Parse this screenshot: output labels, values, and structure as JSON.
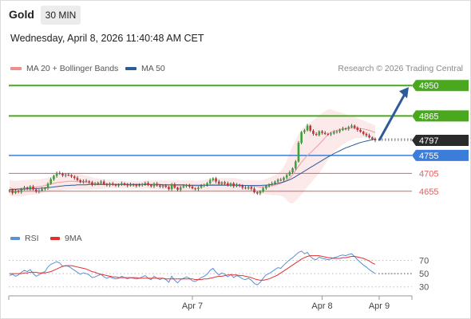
{
  "header": {
    "asset": "Gold",
    "timeframe": "30 MIN",
    "datetime": "Wednesday, April 8, 2026 11:40:48 AM CET"
  },
  "legend": {
    "bb_label": "MA 20 + Bollinger Bands",
    "ma50_label": "MA 50",
    "research": "Research © 2026 Trading Central"
  },
  "colors": {
    "resistance": "#4aa81f",
    "current": "#2b2b2b",
    "pivot": "#3b7dd8",
    "support": "#e06060",
    "bollinger": "#f4a0a0",
    "ma50": "#2d5b9a",
    "rsi": "#5b8fd6",
    "rsi_ma": "#e03030",
    "arrow": "#2d5b9a"
  },
  "chart_data": [
    {
      "type": "line",
      "title": "",
      "levels": [
        {
          "label": "4950",
          "value": 4950,
          "kind": "resistance"
        },
        {
          "label": "4865",
          "value": 4865,
          "kind": "resistance"
        },
        {
          "label": "4797",
          "value": 4797,
          "kind": "current"
        },
        {
          "label": "4755",
          "value": 4755,
          "kind": "pivot"
        },
        {
          "label": "4705",
          "value": 4705,
          "kind": "support"
        },
        {
          "label": "4655",
          "value": 4655,
          "kind": "support"
        }
      ],
      "ylim": [
        4570,
        4975
      ],
      "x_ticks": [
        "Apr 7",
        "Apr 8",
        "Apr 9"
      ],
      "close_series": [
        4658,
        4650,
        4656,
        4653,
        4660,
        4665,
        4662,
        4668,
        4660,
        4654,
        4657,
        4661,
        4664,
        4676,
        4688,
        4698,
        4706,
        4704,
        4699,
        4701,
        4700,
        4696,
        4692,
        4686,
        4681,
        4684,
        4683,
        4680,
        4674,
        4676,
        4679,
        4682,
        4675,
        4672,
        4676,
        4673,
        4671,
        4673,
        4677,
        4674,
        4671,
        4674,
        4672,
        4670,
        4672,
        4675,
        4678,
        4672,
        4669,
        4676,
        4671,
        4668,
        4670,
        4667,
        4661,
        4674,
        4665,
        4659,
        4666,
        4669,
        4672,
        4668,
        4663,
        4661,
        4665,
        4670,
        4673,
        4677,
        4686,
        4691,
        4682,
        4676,
        4680,
        4677,
        4671,
        4677,
        4669,
        4673,
        4670,
        4665,
        4663,
        4667,
        4662,
        4652,
        4649,
        4654,
        4663,
        4670,
        4673,
        4677,
        4682,
        4687,
        4686,
        4693,
        4700,
        4708,
        4719,
        4738,
        4790,
        4820,
        4825,
        4838,
        4824,
        4815,
        4812,
        4822,
        4818,
        4815,
        4814,
        4816,
        4820,
        4822,
        4826,
        4830,
        4829,
        4834,
        4838,
        4832,
        4826,
        4821,
        4815,
        4811,
        4805,
        4801,
        4797
      ],
      "ma20_series": [
        4665,
        4662,
        4662,
        4662,
        4663,
        4664,
        4665,
        4666,
        4667,
        4667,
        4668,
        4669,
        4671,
        4673,
        4675,
        4677,
        4679,
        4680,
        4681,
        4682,
        4683,
        4683,
        4683,
        4682,
        4681,
        4680,
        4679,
        4678,
        4677,
        4676,
        4676,
        4676,
        4675,
        4675,
        4675,
        4675,
        4674,
        4674,
        4674,
        4674,
        4673,
        4673,
        4673,
        4673,
        4673,
        4673,
        4674,
        4674,
        4673,
        4673,
        4673,
        4673,
        4672,
        4672,
        4672,
        4672,
        4671,
        4671,
        4671,
        4671,
        4671,
        4671,
        4671,
        4670,
        4670,
        4671,
        4671,
        4672,
        4673,
        4674,
        4674,
        4674,
        4674,
        4674,
        4674,
        4674,
        4674,
        4674,
        4673,
        4672,
        4671,
        4671,
        4670,
        4669,
        4668,
        4667,
        4667,
        4668,
        4669,
        4670,
        4672,
        4674,
        4677,
        4681,
        4686,
        4692,
        4701,
        4713,
        4725,
        4736,
        4746,
        4755,
        4762,
        4770,
        4778,
        4786,
        4795,
        4804,
        4813,
        4820,
        4822,
        4825,
        4827,
        4829,
        4830,
        4831,
        4832,
        4832,
        4831,
        4830,
        4829,
        4827,
        4825,
        4822,
        4819
      ],
      "ma50_series": [
        4660,
        4660,
        4660,
        4661,
        4661,
        4661,
        4662,
        4662,
        4662,
        4663,
        4663,
        4664,
        4664,
        4665,
        4666,
        4667,
        4668,
        4669,
        4670,
        4671,
        4671,
        4672,
        4672,
        4673,
        4673,
        4673,
        4673,
        4674,
        4674,
        4674,
        4674,
        4674,
        4674,
        4674,
        4674,
        4674,
        4674,
        4674,
        4674,
        4674,
        4674,
        4674,
        4674,
        4674,
        4674,
        4674,
        4674,
        4674,
        4674,
        4674,
        4674,
        4674,
        4673,
        4673,
        4673,
        4673,
        4673,
        4673,
        4673,
        4673,
        4672,
        4672,
        4672,
        4672,
        4672,
        4672,
        4672,
        4672,
        4672,
        4672,
        4672,
        4672,
        4672,
        4672,
        4672,
        4672,
        4672,
        4672,
        4671,
        4671,
        4671,
        4671,
        4671,
        4671,
        4671,
        4671,
        4672,
        4672,
        4673,
        4674,
        4675,
        4677,
        4679,
        4681,
        4684,
        4687,
        4691,
        4696,
        4701,
        4706,
        4711,
        4716,
        4721,
        4726,
        4731,
        4736,
        4741,
        4746,
        4751,
        4755,
        4760,
        4764,
        4768,
        4772,
        4776,
        4779,
        4782,
        4785,
        4788,
        4791,
        4793,
        4795,
        4797,
        4799,
        4801
      ],
      "band_width_series": [
        22,
        22,
        22,
        22,
        22,
        22,
        21,
        21,
        21,
        21,
        20,
        20,
        20,
        20,
        21,
        22,
        23,
        24,
        24,
        24,
        23,
        23,
        22,
        22,
        21,
        20,
        19,
        18,
        17,
        16,
        15,
        14,
        13,
        12,
        12,
        11,
        11,
        10,
        10,
        10,
        10,
        10,
        10,
        10,
        10,
        11,
        11,
        11,
        12,
        12,
        12,
        12,
        13,
        13,
        13,
        13,
        14,
        14,
        14,
        14,
        14,
        14,
        14,
        14,
        14,
        15,
        15,
        16,
        17,
        17,
        18,
        18,
        18,
        18,
        18,
        18,
        18,
        17,
        16,
        15,
        15,
        16,
        16,
        17,
        18,
        19,
        20,
        22,
        24,
        26,
        28,
        30,
        35,
        42,
        55,
        70,
        80,
        85,
        88,
        90,
        90,
        88,
        86,
        84,
        82,
        80,
        78,
        74,
        70,
        64,
        58,
        52,
        48,
        44,
        40,
        36,
        33,
        30,
        28,
        26,
        24,
        22,
        21,
        20,
        20
      ]
    },
    {
      "type": "line",
      "title": "",
      "series": [
        {
          "name": "RSI",
          "values": [
            47,
            49,
            46,
            48,
            52,
            55,
            53,
            56,
            50,
            46,
            48,
            51,
            53,
            60,
            64,
            66,
            68,
            66,
            61,
            62,
            61,
            58,
            55,
            52,
            49,
            51,
            50,
            48,
            44,
            45,
            47,
            49,
            45,
            43,
            45,
            43,
            42,
            43,
            46,
            44,
            42,
            44,
            43,
            42,
            43,
            45,
            47,
            43,
            41,
            46,
            43,
            41,
            43,
            41,
            37,
            46,
            40,
            36,
            41,
            43,
            45,
            43,
            39,
            38,
            41,
            44,
            46,
            49,
            55,
            58,
            52,
            48,
            51,
            49,
            45,
            49,
            44,
            47,
            45,
            42,
            41,
            43,
            40,
            35,
            33,
            37,
            43,
            48,
            50,
            53,
            56,
            59,
            58,
            63,
            67,
            71,
            74,
            78,
            82,
            84,
            80,
            82,
            76,
            72,
            71,
            75,
            73,
            72,
            71,
            72,
            74,
            75,
            77,
            78,
            77,
            79,
            80,
            76,
            71,
            67,
            63,
            60,
            56,
            53,
            50
          ]
        },
        {
          "name": "9MA",
          "values": [
            50,
            50,
            50,
            50,
            50,
            51,
            51,
            52,
            52,
            52,
            51,
            51,
            51,
            52,
            53,
            55,
            57,
            59,
            61,
            62,
            62,
            62,
            61,
            60,
            59,
            58,
            57,
            55,
            53,
            52,
            50,
            49,
            48,
            47,
            46,
            45,
            45,
            44,
            44,
            44,
            44,
            44,
            44,
            44,
            43,
            43,
            43,
            43,
            43,
            43,
            43,
            43,
            43,
            42,
            42,
            42,
            42,
            42,
            42,
            42,
            42,
            42,
            42,
            41,
            41,
            41,
            42,
            42,
            43,
            44,
            45,
            46,
            46,
            47,
            48,
            48,
            48,
            48,
            47,
            47,
            46,
            45,
            44,
            42,
            41,
            40,
            40,
            41,
            42,
            44,
            46,
            48,
            51,
            54,
            57,
            60,
            63,
            66,
            69,
            72,
            74,
            76,
            77,
            77,
            77,
            77,
            76,
            75,
            74,
            74,
            73,
            73,
            73,
            74,
            74,
            75,
            76,
            76,
            75,
            74,
            73,
            71,
            69,
            66,
            64
          ]
        }
      ],
      "y_ticks": [
        70,
        50,
        30
      ],
      "ylim": [
        20,
        85
      ]
    }
  ]
}
